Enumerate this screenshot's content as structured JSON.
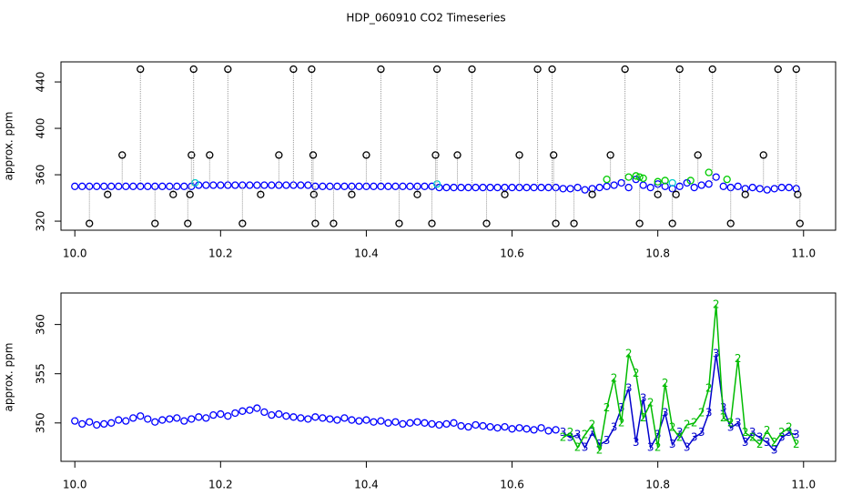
{
  "chart_data": [
    {
      "type": "scatter",
      "title": "HDP_060910  CO2 Timeseries",
      "ylabel": "approx. ppm",
      "xlim": [
        9.981,
        11.044
      ],
      "ylim": [
        312.2,
        457.3
      ],
      "xticks": [
        {
          "value": 10,
          "label": "10.0"
        },
        10.2,
        10.4,
        10.6,
        10.8,
        {
          "value": 11,
          "label": "11.0"
        }
      ],
      "yticks": [
        320,
        360,
        400,
        440
      ],
      "series": [
        {
          "color": "#0000ff",
          "marker": "circle",
          "x": [
            10.0,
            10.01,
            10.02,
            10.03,
            10.04,
            10.05,
            10.06,
            10.07,
            10.08,
            10.09,
            10.1,
            10.11,
            10.12,
            10.13,
            10.14,
            10.15,
            10.16,
            10.17,
            10.18,
            10.19,
            10.2,
            10.21,
            10.22,
            10.23,
            10.24,
            10.25,
            10.26,
            10.27,
            10.28,
            10.29,
            10.3,
            10.31,
            10.32,
            10.33,
            10.34,
            10.35,
            10.36,
            10.37,
            10.38,
            10.39,
            10.4,
            10.41,
            10.42,
            10.43,
            10.44,
            10.45,
            10.46,
            10.47,
            10.48,
            10.49,
            10.5,
            10.51,
            10.52,
            10.53,
            10.54,
            10.55,
            10.56,
            10.57,
            10.58,
            10.59,
            10.6,
            10.61,
            10.62,
            10.63,
            10.64,
            10.65,
            10.66,
            10.67,
            10.68,
            10.69,
            10.7,
            10.71,
            10.72,
            10.73,
            10.74,
            10.75,
            10.76,
            10.77,
            10.78,
            10.79,
            10.8,
            10.81,
            10.82,
            10.83,
            10.84,
            10.85,
            10.86,
            10.87,
            10.88,
            10.89,
            10.9,
            10.91,
            10.92,
            10.93,
            10.94,
            10.95,
            10.96,
            10.97,
            10.98,
            10.99
          ],
          "values": [
            350,
            350,
            350,
            350,
            350,
            350,
            350,
            350,
            350,
            350,
            350,
            350,
            350,
            350,
            350,
            350,
            350,
            351,
            351,
            351,
            351,
            351,
            351,
            351,
            351,
            351,
            351,
            351,
            351,
            351,
            351,
            351,
            351,
            350,
            350,
            350,
            350,
            350,
            350,
            350,
            350,
            350,
            350,
            350,
            350,
            350,
            350,
            350,
            350,
            350,
            349,
            349,
            349,
            349,
            349,
            349,
            349,
            349,
            349,
            349,
            349,
            349,
            349,
            349,
            349,
            349,
            349,
            348,
            348,
            349,
            347,
            348,
            349,
            350,
            351,
            353,
            349,
            356,
            351,
            349,
            352,
            350,
            348,
            350,
            353,
            349,
            351,
            352,
            358,
            350,
            349,
            350,
            348,
            349,
            348,
            347,
            348,
            349,
            349,
            348
          ]
        },
        {
          "color": "#00cc00",
          "marker": "circle",
          "x": [
            10.73,
            10.76,
            10.77,
            10.775,
            10.78,
            10.8,
            10.81,
            10.845,
            10.87,
            10.895
          ],
          "values": [
            356,
            358,
            359,
            358,
            357,
            354,
            355,
            355,
            362,
            356
          ]
        },
        {
          "color": "#00cccc",
          "marker": "circle",
          "x": [
            10.165,
            10.497,
            10.82
          ],
          "values": [
            353,
            352,
            353
          ]
        },
        {
          "color": "#000000",
          "marker": "circle",
          "drop_lines": true,
          "x": [
            10.02,
            10.045,
            10.065,
            10.09,
            10.11,
            10.135,
            10.155,
            10.158,
            10.16,
            10.163,
            10.185,
            10.21,
            10.23,
            10.255,
            10.28,
            10.3,
            10.325,
            10.327,
            10.328,
            10.33,
            10.355,
            10.38,
            10.4,
            10.42,
            10.445,
            10.47,
            10.49,
            10.495,
            10.497,
            10.525,
            10.545,
            10.565,
            10.59,
            10.61,
            10.635,
            10.655,
            10.657,
            10.66,
            10.685,
            10.71,
            10.735,
            10.755,
            10.775,
            10.8,
            10.82,
            10.825,
            10.83,
            10.855,
            10.875,
            10.9,
            10.92,
            10.945,
            10.965,
            10.99,
            10.992,
            10.995
          ],
          "values": [
            318,
            343,
            377,
            451,
            318,
            343,
            318,
            343,
            377,
            451,
            377,
            451,
            318,
            343,
            377,
            451,
            451,
            377,
            343,
            318,
            318,
            343,
            377,
            451,
            318,
            343,
            318,
            377,
            451,
            377,
            451,
            318,
            343,
            377,
            451,
            451,
            377,
            318,
            318,
            343,
            377,
            451,
            318,
            343,
            318,
            343,
            451,
            377,
            451,
            318,
            343,
            377,
            451,
            451,
            343,
            318
          ]
        }
      ]
    },
    {
      "type": "scatter",
      "ylabel": "approx. ppm",
      "xlim": [
        9.981,
        11.044
      ],
      "ylim": [
        346.1,
        363.2
      ],
      "xticks": [
        {
          "value": 10,
          "label": "10.0"
        },
        10.2,
        10.4,
        10.6,
        10.8,
        {
          "value": 11,
          "label": "11.0"
        }
      ],
      "yticks": [
        350,
        355,
        360
      ],
      "series": [
        {
          "color": "#0000ff",
          "marker": "circle",
          "x": [
            10.0,
            10.01,
            10.02,
            10.03,
            10.04,
            10.05,
            10.06,
            10.07,
            10.08,
            10.09,
            10.1,
            10.11,
            10.12,
            10.13,
            10.14,
            10.15,
            10.16,
            10.17,
            10.18,
            10.19,
            10.2,
            10.21,
            10.22,
            10.23,
            10.24,
            10.25,
            10.26,
            10.27,
            10.28,
            10.29,
            10.3,
            10.31,
            10.32,
            10.33,
            10.34,
            10.35,
            10.36,
            10.37,
            10.38,
            10.39,
            10.4,
            10.41,
            10.42,
            10.43,
            10.44,
            10.45,
            10.46,
            10.47,
            10.48,
            10.49,
            10.5,
            10.51,
            10.52,
            10.53,
            10.54,
            10.55,
            10.56,
            10.57,
            10.58,
            10.59,
            10.6,
            10.61,
            10.62,
            10.63,
            10.64,
            10.65,
            10.66
          ],
          "values": [
            350.2,
            349.9,
            350.1,
            349.8,
            349.9,
            350.0,
            350.3,
            350.2,
            350.5,
            350.7,
            350.4,
            350.1,
            350.3,
            350.4,
            350.5,
            350.2,
            350.4,
            350.6,
            350.5,
            350.8,
            350.9,
            350.7,
            351.0,
            351.2,
            351.3,
            351.5,
            351.1,
            350.8,
            350.9,
            350.7,
            350.6,
            350.5,
            350.4,
            350.6,
            350.5,
            350.4,
            350.3,
            350.5,
            350.3,
            350.2,
            350.3,
            350.1,
            350.2,
            350.0,
            350.1,
            349.9,
            350.0,
            350.1,
            350.0,
            349.9,
            349.8,
            349.9,
            350.0,
            349.7,
            349.6,
            349.8,
            349.7,
            349.6,
            349.5,
            349.6,
            349.4,
            349.5,
            349.4,
            349.3,
            349.5,
            349.2,
            349.3
          ]
        },
        {
          "color": "#0000cc",
          "marker": "3",
          "line": true,
          "x": [
            10.67,
            10.68,
            10.69,
            10.7,
            10.71,
            10.72,
            10.73,
            10.74,
            10.75,
            10.76,
            10.77,
            10.78,
            10.79,
            10.8,
            10.81,
            10.82,
            10.83,
            10.84,
            10.85,
            10.86,
            10.87,
            10.88,
            10.89,
            10.9,
            10.91,
            10.92,
            10.93,
            10.94,
            10.95,
            10.96,
            10.97,
            10.98,
            10.99
          ],
          "values": [
            349.0,
            348.5,
            348.8,
            347.5,
            349.0,
            347.8,
            348.2,
            349.5,
            351.5,
            353.5,
            348.0,
            352.5,
            347.5,
            348.8,
            351.0,
            347.8,
            349.0,
            347.5,
            348.5,
            349.0,
            351.0,
            357.0,
            351.5,
            349.5,
            350.0,
            348.0,
            349.0,
            348.5,
            348.0,
            347.2,
            348.5,
            349.0,
            348.8
          ]
        },
        {
          "color": "#00bb00",
          "marker": "2",
          "line": true,
          "x": [
            10.67,
            10.68,
            10.69,
            10.7,
            10.71,
            10.72,
            10.73,
            10.74,
            10.75,
            10.76,
            10.77,
            10.78,
            10.79,
            10.8,
            10.81,
            10.82,
            10.83,
            10.84,
            10.85,
            10.86,
            10.87,
            10.88,
            10.89,
            10.9,
            10.91,
            10.92,
            10.93,
            10.94,
            10.95,
            10.96,
            10.97,
            10.98,
            10.99
          ],
          "values": [
            348.5,
            349.0,
            347.5,
            348.8,
            349.8,
            347.2,
            351.5,
            354.5,
            350.0,
            357.0,
            355.0,
            350.5,
            352.0,
            347.5,
            354.0,
            349.5,
            348.5,
            349.8,
            350.0,
            351.0,
            353.5,
            362.0,
            350.5,
            350.0,
            356.5,
            349.0,
            348.5,
            347.8,
            349.2,
            348.0,
            349.0,
            349.5,
            347.8
          ]
        }
      ]
    }
  ]
}
